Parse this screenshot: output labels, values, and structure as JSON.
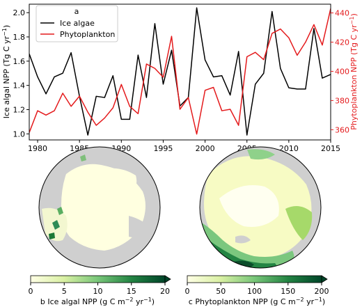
{
  "chart_data": [
    {
      "type": "line",
      "panel_label": "a",
      "x": [
        1979,
        1980,
        1981,
        1982,
        1983,
        1984,
        1985,
        1986,
        1987,
        1988,
        1989,
        1990,
        1991,
        1992,
        1993,
        1994,
        1995,
        1996,
        1997,
        1998,
        1999,
        2000,
        2001,
        2002,
        2003,
        2004,
        2005,
        2006,
        2007,
        2008,
        2009,
        2010,
        2011,
        2012,
        2013,
        2014,
        2015
      ],
      "xlim": [
        1979,
        2015
      ],
      "xticks": [
        1980,
        1985,
        1990,
        1995,
        2000,
        2005,
        2010,
        2015
      ],
      "series": [
        {
          "name": "Ice algae",
          "axis": "left",
          "color": "#000000",
          "values": [
            1.66,
            1.47,
            1.33,
            1.47,
            1.5,
            1.67,
            1.31,
            0.99,
            1.31,
            1.3,
            1.48,
            1.12,
            1.12,
            1.65,
            1.3,
            1.91,
            1.41,
            1.69,
            1.23,
            1.3,
            2.04,
            1.61,
            1.47,
            1.48,
            1.32,
            1.68,
            0.99,
            1.41,
            1.5,
            2.01,
            1.54,
            1.38,
            1.37,
            1.37,
            1.87,
            1.46,
            1.49
          ]
        },
        {
          "name": "Phytoplankton",
          "axis": "right",
          "color": "#e41a1c",
          "values": [
            358,
            373,
            370,
            373,
            385,
            376,
            383,
            372,
            363,
            368,
            375,
            391,
            376,
            371,
            405,
            402,
            396,
            424,
            374,
            382,
            357,
            387,
            389,
            373,
            374,
            363,
            410,
            413,
            408,
            426,
            429,
            423,
            411,
            420,
            432,
            418,
            443
          ]
        }
      ],
      "ylabel": "Ice algal NPP (Tg C yr",
      "ylabel_sup": "−1",
      "ylabel_close": ")",
      "ylim": [
        0.95,
        2.07
      ],
      "yticks": [
        "1.0",
        "1.2",
        "1.4",
        "1.6",
        "1.8",
        "2.0"
      ],
      "ylabel2": "Phytoplankton NPP (Tg C yr",
      "ylabel2_sup": "−1",
      "ylabel2_close": ")",
      "ylim2": [
        353,
        446
      ],
      "yticks2": [
        "360",
        "380",
        "400",
        "420",
        "440"
      ],
      "legend": "top-left"
    },
    {
      "type": "heatmap",
      "panel_label": "b",
      "colorbar_label": "b Ice algal NPP (g C m",
      "colorbar_sup1": "−2",
      "colorbar_mid": " yr",
      "colorbar_sup2": "−1",
      "colorbar_close": ")",
      "colorbar_range": [
        0,
        20
      ],
      "colorbar_ticks": [
        "0",
        "5",
        "10",
        "15",
        "20"
      ],
      "colormap": "Greens (light yellow to dark green)"
    },
    {
      "type": "heatmap",
      "panel_label": "c",
      "colorbar_label": "c Phytoplankton NPP (g C m",
      "colorbar_sup1": "−2",
      "colorbar_mid": " yr",
      "colorbar_sup2": "−1",
      "colorbar_close": ")",
      "colorbar_range": [
        0,
        200
      ],
      "colorbar_ticks": [
        "0",
        "50",
        "100",
        "150",
        "200"
      ],
      "colormap": "Greens (light yellow to dark green)"
    }
  ]
}
